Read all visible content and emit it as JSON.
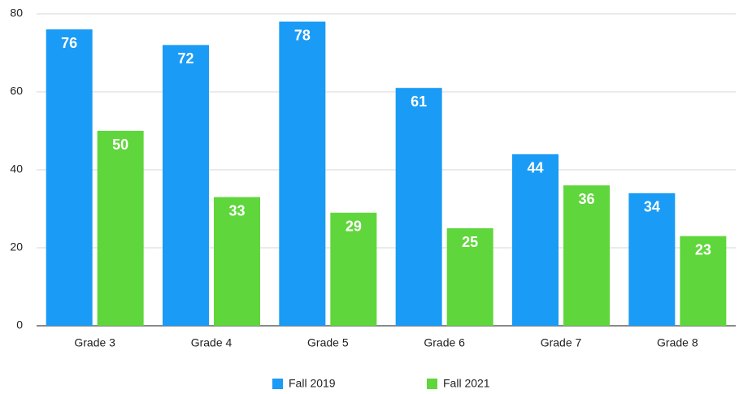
{
  "chart_data": {
    "type": "bar",
    "categories": [
      "Grade 3",
      "Grade 4",
      "Grade 5",
      "Grade 6",
      "Grade 7",
      "Grade 8"
    ],
    "series": [
      {
        "name": "Fall 2019",
        "color": "#1a9bf5",
        "values": [
          76,
          72,
          78,
          61,
          44,
          34
        ]
      },
      {
        "name": "Fall 2021",
        "color": "#5fd63b",
        "values": [
          50,
          33,
          29,
          25,
          36,
          23
        ]
      }
    ],
    "ylim": [
      0,
      80
    ],
    "yticks": [
      0,
      20,
      40,
      60,
      80
    ],
    "grid": true,
    "legend": "bottom"
  }
}
